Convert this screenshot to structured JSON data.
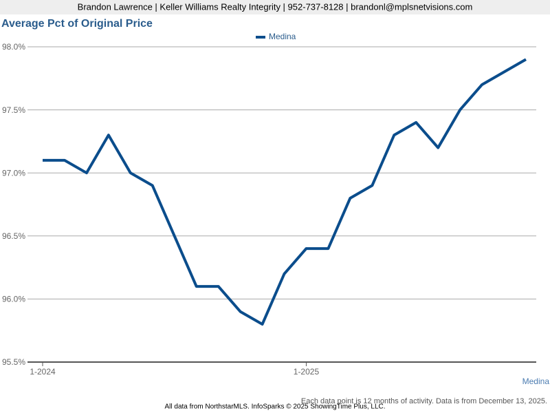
{
  "header": "Brandon Lawrence | Keller Williams Realty Integrity | 952-737-8128 | brandonl@mplsnetvisions.com",
  "chart_data": {
    "type": "line",
    "title": "Average Pct of Original Price",
    "categories": [
      "1-2024",
      null,
      null,
      null,
      null,
      null,
      null,
      null,
      null,
      null,
      null,
      null,
      "1-2025",
      null,
      null,
      null,
      null,
      null,
      null,
      null,
      null,
      null,
      null
    ],
    "series": [
      {
        "name": "Medina",
        "color": "#0b4d8c",
        "values": [
          97.1,
          97.1,
          97.0,
          97.3,
          97.0,
          96.9,
          96.5,
          96.1,
          96.1,
          95.9,
          95.8,
          96.2,
          96.4,
          96.4,
          96.8,
          96.9,
          97.3,
          97.4,
          97.2,
          97.5,
          97.7,
          97.8,
          97.9
        ]
      }
    ],
    "ylim": [
      95.5,
      98.0
    ],
    "yticks": [
      {
        "value": 95.5,
        "label": "95.5%"
      },
      {
        "value": 96.0,
        "label": "96.0%"
      },
      {
        "value": 96.5,
        "label": "96.5%"
      },
      {
        "value": 97.0,
        "label": "97.0%"
      },
      {
        "value": 97.5,
        "label": "97.5%"
      },
      {
        "value": 98.0,
        "label": "98.0%"
      }
    ],
    "grid": true,
    "legend": "top"
  },
  "note": "Each data point is 12 months of activity. Data is from December 13, 2025.",
  "footer": "All data from NorthstarMLS. InfoSparks © 2025 ShowingTime Plus, LLC."
}
